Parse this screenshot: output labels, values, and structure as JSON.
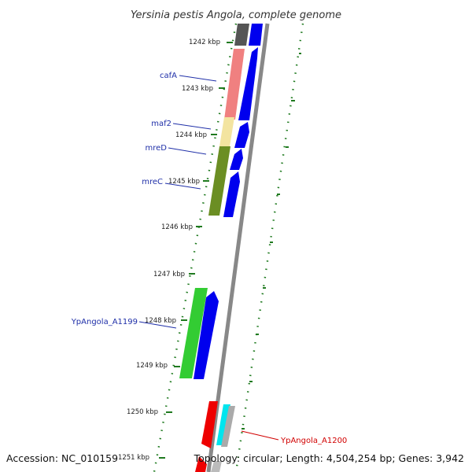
{
  "title": "Yersinia pestis Angola, complete genome",
  "footer": {
    "accession": "Accession: NC_010159",
    "summary": "Topology: circular; Length: 4,504,254 bp; Genes: 3,942"
  },
  "ticks": [
    "1242 kbp",
    "1243 kbp",
    "1244 kbp",
    "1245 kbp",
    "1246 kbp",
    "1247 kbp",
    "1248 kbp",
    "1249 kbp",
    "1250 kbp",
    "1251 kbp"
  ],
  "genes": [
    {
      "name": "cafA",
      "color": "#1f2fa8"
    },
    {
      "name": "maf2",
      "color": "#1f2fa8"
    },
    {
      "name": "mreD",
      "color": "#1f2fa8"
    },
    {
      "name": "mreC",
      "color": "#1f2fa8"
    },
    {
      "name": "YpAngola_A1199",
      "color": "#1f2fa8"
    },
    {
      "name": "YpAngola_A1200",
      "color": "#d10000"
    }
  ],
  "colors": {
    "cds_forward": "#0000ee",
    "backbone": "#888888",
    "gc_dots": "#1f7a1f",
    "feature_salmon": "#f08080",
    "feature_khaki": "#f3e4a0",
    "feature_olive": "#6b8e23",
    "feature_green": "#33cc33",
    "feature_red": "#ee0000",
    "feature_cyan": "#00e5ee",
    "feature_gray": "#aaaaaa",
    "feature_darkgray": "#555555"
  }
}
